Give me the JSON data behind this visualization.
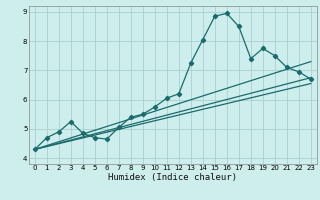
{
  "xlabel": "Humidex (Indice chaleur)",
  "ylabel": "",
  "bg_color": "#ceeeed",
  "grid_color": "#aed4d3",
  "line_color": "#1a6b6b",
  "xlim": [
    -0.5,
    23.5
  ],
  "ylim": [
    3.8,
    9.2
  ],
  "yticks": [
    4,
    5,
    6,
    7,
    8,
    9
  ],
  "xticks": [
    0,
    1,
    2,
    3,
    4,
    5,
    6,
    7,
    8,
    9,
    10,
    11,
    12,
    13,
    14,
    15,
    16,
    17,
    18,
    19,
    20,
    21,
    22,
    23
  ],
  "curve1_x": [
    0,
    1,
    2,
    3,
    4,
    5,
    6,
    7,
    8,
    9,
    10,
    11,
    12,
    13,
    14,
    15,
    16,
    17,
    18,
    19,
    20,
    21,
    22,
    23
  ],
  "curve1_y": [
    4.3,
    4.7,
    4.9,
    5.25,
    4.85,
    4.7,
    4.65,
    5.05,
    5.4,
    5.5,
    5.75,
    6.05,
    6.2,
    7.25,
    8.05,
    8.85,
    8.95,
    8.5,
    7.4,
    7.75,
    7.5,
    7.1,
    6.95,
    6.7
  ],
  "curve2_x": [
    0,
    23
  ],
  "curve2_y": [
    4.3,
    6.55
  ],
  "curve3_x": [
    0,
    23
  ],
  "curve3_y": [
    4.3,
    6.75
  ],
  "curve4_x": [
    0,
    23
  ],
  "curve4_y": [
    4.3,
    7.3
  ]
}
